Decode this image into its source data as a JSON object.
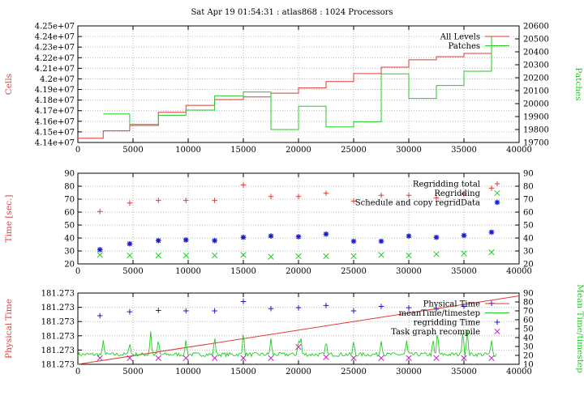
{
  "title": "Sat Apr 19 01:54:31 : atlas868 : 1024 Processors",
  "colors": {
    "red": "#e03a3a",
    "green": "#22cc22",
    "blue": "#1a1ad0",
    "magenta": "#cc22cc",
    "grid": "#b8b8b8"
  },
  "chart_data": [
    {
      "type": "line",
      "title": "Sat Apr 19 01:54:31 : atlas868 : 1024 Processors",
      "xlim": [
        0,
        40000
      ],
      "xticks": [
        "0",
        "5000",
        "10000",
        "15000",
        "20000",
        "25000",
        "30000",
        "35000",
        "40000"
      ],
      "ylabel": "Cells",
      "ylim": [
        41400000,
        42500000
      ],
      "yticks": [
        "4.14e+07",
        "4.15e+07",
        "4.16e+07",
        "4.17e+07",
        "4.18e+07",
        "4.19e+07",
        "4.2e+07",
        "4.21e+07",
        "4.22e+07",
        "4.23e+07",
        "4.24e+07",
        "4.25e+07"
      ],
      "y2label": "Patches",
      "y2lim": [
        19700,
        20600
      ],
      "y2ticks": [
        "19700",
        "19800",
        "19900",
        "20000",
        "20100",
        "20200",
        "20300",
        "20400",
        "20500",
        "20600"
      ],
      "grid": true,
      "legend_position": "top-right",
      "series": [
        {
          "name": "All Levels",
          "axis": "left",
          "step": true,
          "x": [
            0,
            2300,
            4700,
            7300,
            9800,
            12400,
            15000,
            17500,
            20000,
            22500,
            25000,
            27500,
            30000,
            32500,
            35000,
            37500
          ],
          "y": [
            41440000,
            41510000,
            41560000,
            41685000,
            41750000,
            41805000,
            41830000,
            41865000,
            41915000,
            41975000,
            42050000,
            42110000,
            42180000,
            42210000,
            42240000,
            42260000
          ]
        },
        {
          "name": "Patches",
          "axis": "right",
          "step": true,
          "x": [
            2300,
            4700,
            7300,
            9800,
            12400,
            15000,
            17500,
            20000,
            22500,
            25000,
            27500,
            30000,
            32500,
            35000,
            37500
          ],
          "y": [
            19920,
            19840,
            19910,
            19950,
            20060,
            20090,
            19800,
            19980,
            19820,
            19860,
            20230,
            20040,
            20140,
            20250,
            20520
          ]
        }
      ]
    },
    {
      "type": "scatter",
      "xlim": [
        0,
        40000
      ],
      "xticks": [
        "0",
        "5000",
        "10000",
        "15000",
        "20000",
        "25000",
        "30000",
        "35000",
        "40000"
      ],
      "ylabel": "Time [sec.]",
      "ylim": [
        20,
        90
      ],
      "yticks": [
        "20",
        "30",
        "40",
        "50",
        "60",
        "70",
        "80",
        "90"
      ],
      "y2lim": [
        20,
        90
      ],
      "grid": true,
      "legend_position": "top-right",
      "series": [
        {
          "name": "Regridding total",
          "marker": "+",
          "x": [
            2000,
            4700,
            7300,
            9800,
            12400,
            15000,
            17500,
            20000,
            22500,
            25000,
            27500,
            30000,
            32500,
            35000,
            37500
          ],
          "y": [
            60.5,
            67,
            69,
            69,
            69,
            81,
            72,
            72,
            74.5,
            68.5,
            73,
            73,
            71,
            74,
            78.5
          ]
        },
        {
          "name": "Regridding",
          "marker": "x",
          "x": [
            2000,
            4700,
            7300,
            9800,
            12400,
            15000,
            17500,
            20000,
            22500,
            25000,
            27500,
            30000,
            32500,
            35000,
            37500
          ],
          "y": [
            27,
            26.5,
            26.5,
            26.5,
            26.5,
            27,
            25.5,
            26,
            26,
            26,
            27,
            26.5,
            27.5,
            28,
            29
          ]
        },
        {
          "name": "Schedule and copy regridData",
          "marker": "*",
          "x": [
            2000,
            4700,
            7300,
            9800,
            12400,
            15000,
            17500,
            20000,
            22500,
            25000,
            27500,
            30000,
            32500,
            35000,
            37500
          ],
          "y": [
            31,
            35.5,
            38,
            38.5,
            38,
            40.5,
            41.5,
            41,
            43,
            37.5,
            37.5,
            41.5,
            40.5,
            42,
            44.5
          ]
        }
      ]
    },
    {
      "type": "line",
      "xlim": [
        0,
        40000
      ],
      "xticks": [
        "0",
        "5000",
        "10000",
        "15000",
        "20000",
        "25000",
        "30000",
        "35000",
        "40000"
      ],
      "ylabel": "Physical Time",
      "yticks": [
        "181.273",
        "181.273",
        "181.273",
        "181.273",
        "181.273",
        "181.273"
      ],
      "y2label": "Mean Time/timestep",
      "y2lim": [
        10,
        90
      ],
      "y2ticks": [
        "10",
        "20",
        "30",
        "40",
        "50",
        "60",
        "70",
        "80",
        "90"
      ],
      "grid": true,
      "legend_position": "top-right",
      "series": [
        {
          "name": "Physical Time",
          "axis": "left",
          "x": [
            0,
            40000
          ],
          "y_fraction": [
            0.0,
            0.96
          ]
        },
        {
          "name": "meanTime/timestep",
          "axis": "right",
          "baseline": 21,
          "spikes": [
            [
              2300,
              38
            ],
            [
              4700,
              35
            ],
            [
              6600,
              47
            ],
            [
              7300,
              40
            ],
            [
              9800,
              38
            ],
            [
              12400,
              43
            ],
            [
              15000,
              50
            ],
            [
              17500,
              40
            ],
            [
              20000,
              38
            ],
            [
              20200,
              45
            ],
            [
              22500,
              38
            ],
            [
              25000,
              38
            ],
            [
              27500,
              36
            ],
            [
              29800,
              38
            ],
            [
              32200,
              40
            ],
            [
              32600,
              50
            ],
            [
              34900,
              50
            ],
            [
              35300,
              50
            ],
            [
              37500,
              38
            ]
          ]
        },
        {
          "name": "regridding Time",
          "axis": "right",
          "marker": "+",
          "x": [
            2000,
            4700,
            7300,
            9800,
            12400,
            15000,
            17500,
            20000,
            22500,
            25000,
            27500,
            30000,
            32500,
            35000,
            37500
          ],
          "y": [
            64.5,
            69,
            70.5,
            70,
            70,
            80.5,
            72.5,
            73.5,
            76,
            70,
            75,
            73.5,
            72,
            75,
            78.5
          ]
        },
        {
          "name": "Task graph recompile",
          "axis": "right",
          "marker": "x",
          "x": [
            2000,
            4700,
            7300,
            9800,
            12400,
            15000,
            17500,
            20000,
            22500,
            25000,
            27500,
            30000,
            32500,
            35000,
            37500
          ],
          "y": [
            17,
            17,
            17,
            17,
            17,
            17,
            17,
            29.5,
            18,
            17,
            17,
            17,
            17,
            17,
            17
          ]
        }
      ]
    }
  ]
}
